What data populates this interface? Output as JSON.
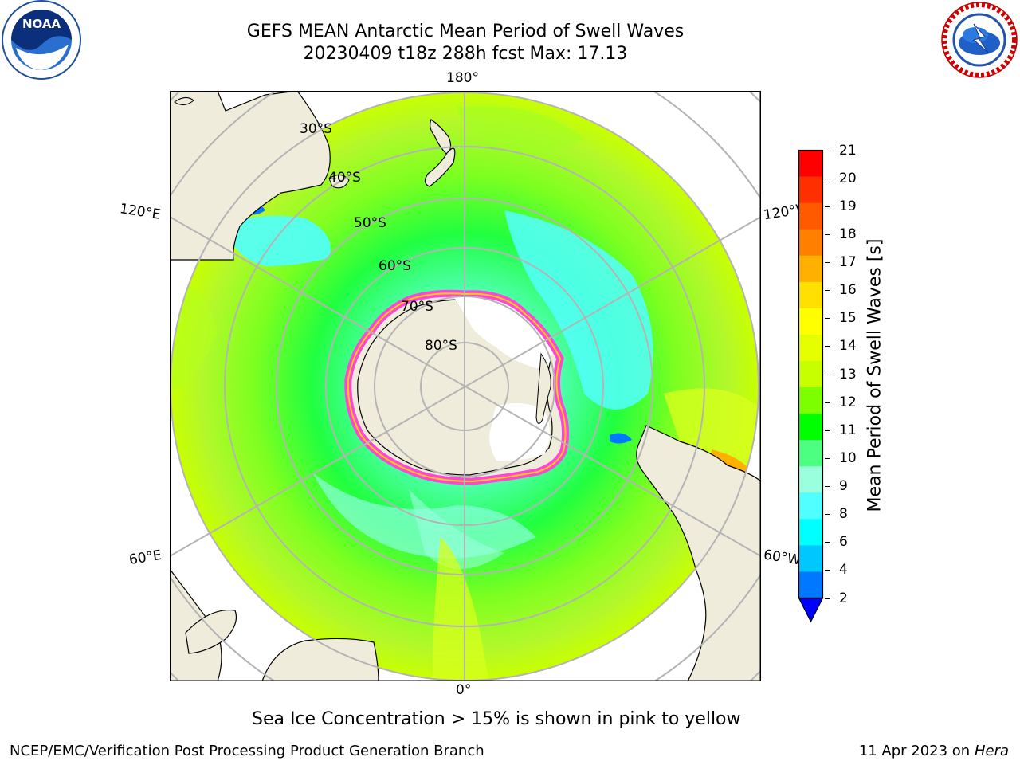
{
  "title_line1": "GEFS MEAN Antarctic Mean Period of Swell Waves",
  "title_line2": "20230409 t18z 288h fcst   Max: 17.13",
  "logos": {
    "left": "NOAA",
    "right": "NATIONAL WEATHER SERVICE"
  },
  "map": {
    "projection": "south-polar-stereographic",
    "longitude_labels": {
      "top": "180°",
      "bottom": "0°",
      "left_upper": "120°E",
      "left_lower": "60°E",
      "right_upper": "120°W",
      "right_lower": "60°W"
    },
    "latitude_labels": [
      "30°S",
      "40°S",
      "50°S",
      "60°S",
      "70°S",
      "80°S"
    ],
    "colors": {
      "land": "#efecdc",
      "ice_shelf": "#ffffff",
      "sea_ice_edge": "#ff44dd",
      "grid": "#b4b4b4"
    }
  },
  "colorbar": {
    "label": "Mean Period of Swell Waves [s]",
    "ticks": [
      "21",
      "20",
      "19",
      "18",
      "17",
      "16",
      "15",
      "14",
      "13",
      "12",
      "11",
      "10",
      "9",
      "8",
      "6",
      "4",
      "2"
    ],
    "colors_top_to_bottom": [
      "#ff0000",
      "#ff3000",
      "#ff5a00",
      "#ff8000",
      "#ffb000",
      "#ffe000",
      "#ffff00",
      "#e6ff00",
      "#c8ff00",
      "#7dff00",
      "#00ff00",
      "#4dff80",
      "#9affdc",
      "#50ffff",
      "#00ffff",
      "#00c8ff",
      "#0078ff",
      "#0000ff"
    ]
  },
  "caption": "Sea Ice Concentration > 15% is shown in pink to yellow",
  "footer_left": "NCEP/EMC/Verification Post Processing Product Generation Branch",
  "footer_right_date": "11 Apr 2023 on ",
  "footer_right_machine": "Hera"
}
